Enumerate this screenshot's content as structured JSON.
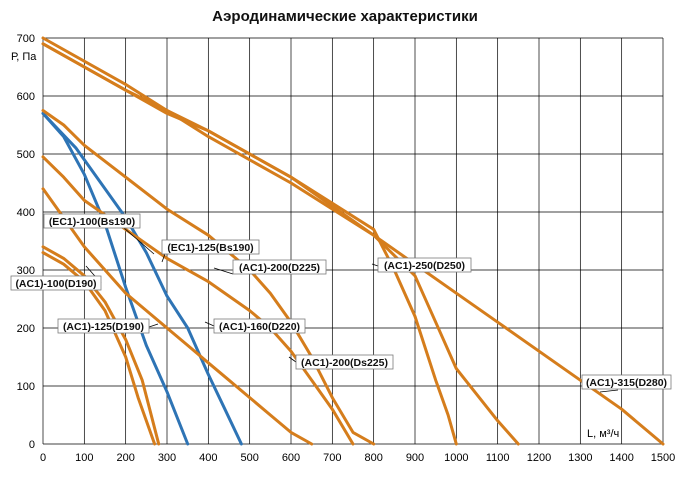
{
  "chart_data": {
    "type": "line",
    "title": "Аэродинамические характеристики",
    "xlabel": "L, м³/ч",
    "ylabel": "Р, Па",
    "xlim": [
      0,
      1500
    ],
    "ylim": [
      0,
      700
    ],
    "x_ticks": [
      0,
      100,
      200,
      300,
      400,
      500,
      600,
      700,
      800,
      900,
      1000,
      1100,
      1200,
      1300,
      1400,
      1500
    ],
    "y_ticks": [
      0,
      100,
      200,
      300,
      400,
      500,
      600,
      700
    ],
    "grid": true,
    "colors": {
      "ac": "#d57d1c",
      "ec": "#2e74b5",
      "grid": "#000000"
    },
    "series": [
      {
        "name": "(AC1)-100(D190)",
        "color": "#d57d1c",
        "points": [
          [
            0,
            340
          ],
          [
            50,
            320
          ],
          [
            100,
            290
          ],
          [
            150,
            245
          ],
          [
            200,
            180
          ],
          [
            240,
            110
          ],
          [
            280,
            0
          ]
        ]
      },
      {
        "name": "(AC1)-125(D190)",
        "color": "#d57d1c",
        "points": [
          [
            0,
            330
          ],
          [
            50,
            310
          ],
          [
            100,
            280
          ],
          [
            150,
            230
          ],
          [
            200,
            150
          ],
          [
            230,
            80
          ],
          [
            270,
            0
          ]
        ]
      },
      {
        "name": "(EC1)-100(Bs190)",
        "color": "#2e74b5",
        "points": [
          [
            0,
            570
          ],
          [
            50,
            530
          ],
          [
            100,
            465
          ],
          [
            150,
            380
          ],
          [
            200,
            270
          ],
          [
            250,
            170
          ],
          [
            300,
            90
          ],
          [
            350,
            0
          ]
        ]
      },
      {
        "name": "(EC1)-125(Bs190)",
        "color": "#2e74b5",
        "points": [
          [
            0,
            570
          ],
          [
            80,
            510
          ],
          [
            150,
            440
          ],
          [
            200,
            390
          ],
          [
            250,
            330
          ],
          [
            300,
            255
          ],
          [
            350,
            200
          ],
          [
            400,
            120
          ],
          [
            440,
            60
          ],
          [
            480,
            0
          ]
        ]
      },
      {
        "name": "(AC1)-160(D220)",
        "color": "#d57d1c",
        "points": [
          [
            0,
            440
          ],
          [
            50,
            390
          ],
          [
            100,
            340
          ],
          [
            200,
            260
          ],
          [
            300,
            200
          ],
          [
            350,
            170
          ],
          [
            400,
            140
          ],
          [
            450,
            110
          ],
          [
            500,
            80
          ],
          [
            550,
            50
          ],
          [
            600,
            20
          ],
          [
            650,
            0
          ]
        ]
      },
      {
        "name": "(AC1)-200(D225)",
        "color": "#d57d1c",
        "points": [
          [
            0,
            575
          ],
          [
            50,
            550
          ],
          [
            100,
            515
          ],
          [
            200,
            460
          ],
          [
            300,
            405
          ],
          [
            400,
            360
          ],
          [
            500,
            300
          ],
          [
            550,
            260
          ],
          [
            600,
            210
          ],
          [
            650,
            150
          ],
          [
            700,
            80
          ],
          [
            750,
            20
          ],
          [
            800,
            0
          ]
        ]
      },
      {
        "name": "(AC1)-200(Ds225)",
        "color": "#d57d1c",
        "points": [
          [
            0,
            495
          ],
          [
            50,
            460
          ],
          [
            100,
            420
          ],
          [
            200,
            370
          ],
          [
            300,
            320
          ],
          [
            400,
            280
          ],
          [
            500,
            230
          ],
          [
            550,
            200
          ],
          [
            600,
            160
          ],
          [
            650,
            110
          ],
          [
            700,
            60
          ],
          [
            750,
            0
          ]
        ]
      },
      {
        "name": "(AC1)-250(D250)",
        "color": "#d57d1c",
        "points": [
          [
            0,
            690
          ],
          [
            100,
            650
          ],
          [
            200,
            610
          ],
          [
            300,
            570
          ],
          [
            400,
            540
          ],
          [
            500,
            500
          ],
          [
            600,
            460
          ],
          [
            700,
            410
          ],
          [
            800,
            360
          ],
          [
            900,
            290
          ],
          [
            950,
            210
          ],
          [
            1000,
            130
          ],
          [
            1100,
            40
          ],
          [
            1150,
            0
          ]
        ]
      },
      {
        "name": "(AC1)-250(D250)",
        "color": "#d57d1c",
        "points": [
          [
            0,
            690
          ],
          [
            200,
            610
          ],
          [
            400,
            540
          ],
          [
            600,
            460
          ],
          [
            800,
            370
          ],
          [
            850,
            300
          ],
          [
            900,
            220
          ],
          [
            950,
            110
          ],
          [
            980,
            50
          ],
          [
            1000,
            0
          ]
        ]
      },
      {
        "name": "(AC1)-315(D280)",
        "color": "#d57d1c",
        "points": [
          [
            0,
            700
          ],
          [
            200,
            620
          ],
          [
            400,
            530
          ],
          [
            600,
            450
          ],
          [
            800,
            360
          ],
          [
            1000,
            260
          ],
          [
            1100,
            210
          ],
          [
            1200,
            160
          ],
          [
            1300,
            110
          ],
          [
            1400,
            60
          ],
          [
            1500,
            0
          ]
        ]
      }
    ],
    "annotations": [
      "(EC1)-100(Bs190)",
      "(EC1)-125(Bs190)",
      "(AC1)-200(D225)",
      "(AC1)-250(D250)",
      "(AC1)-100(D190)",
      "(AC1)-125(D190)",
      "(AC1)-160(D220)",
      "(AC1)-200(Ds225)",
      "(AC1)-315(D280)"
    ]
  }
}
